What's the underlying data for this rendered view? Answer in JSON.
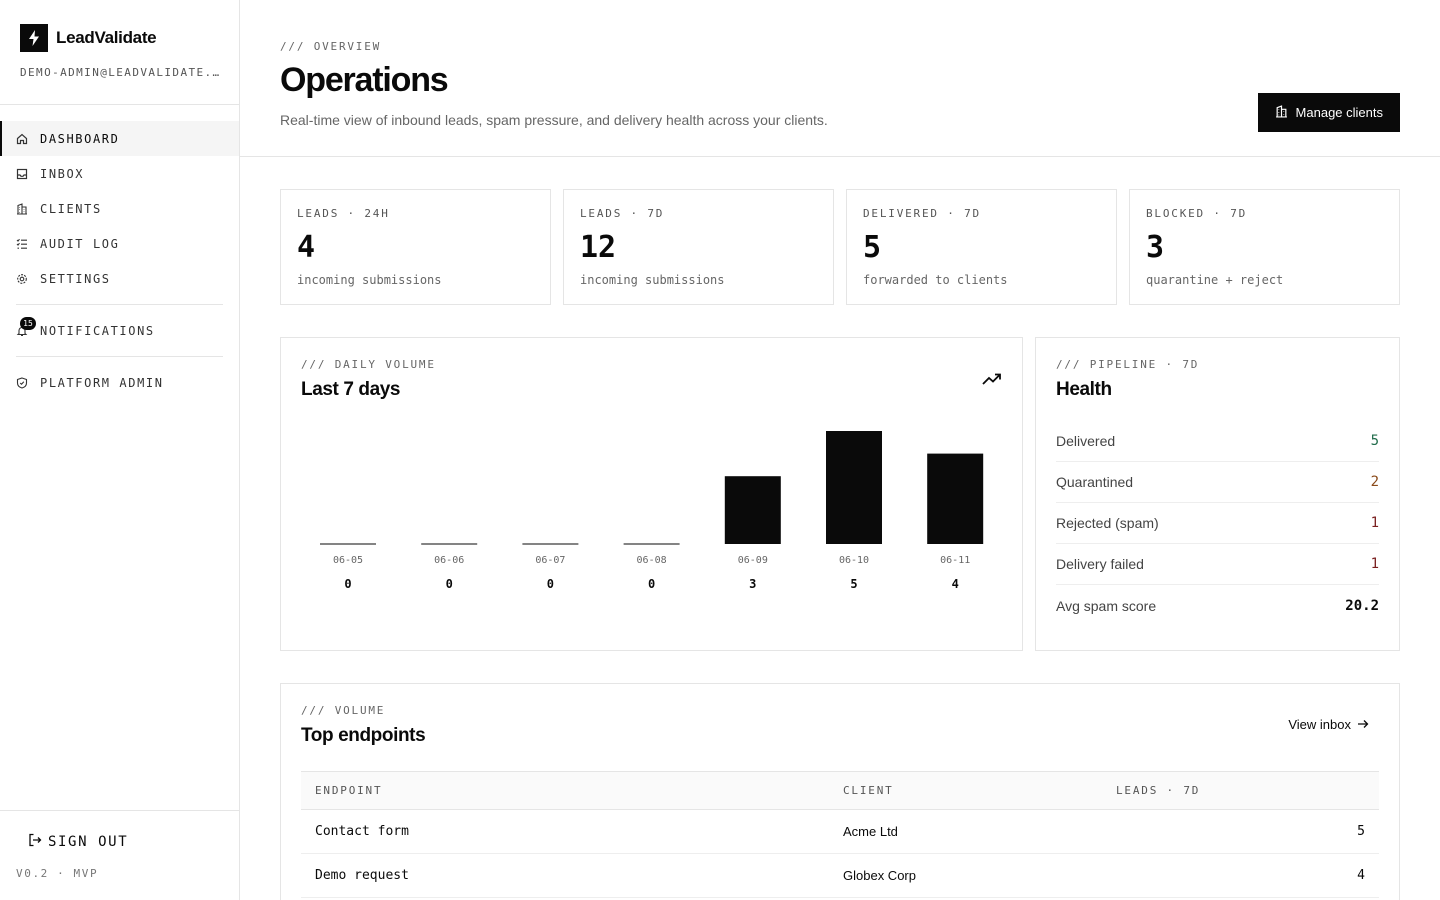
{
  "sidebar": {
    "brand_name": "LeadValidate",
    "user_email": "demo-admin@leadvalidate.io",
    "items": [
      {
        "label": "DASHBOARD",
        "icon": "home-icon"
      },
      {
        "label": "INBOX",
        "icon": "inbox-icon"
      },
      {
        "label": "CLIENTS",
        "icon": "building-icon"
      },
      {
        "label": "AUDIT LOG",
        "icon": "list-check-icon"
      },
      {
        "label": "SETTINGS",
        "icon": "gear-icon"
      }
    ],
    "notifications": {
      "label": "NOTIFICATIONS",
      "count": "15"
    },
    "platform_admin": "PLATFORM ADMIN",
    "sign_out": "SIGN OUT",
    "version": "V0.2 · MVP"
  },
  "header": {
    "eyebrow": "/// OVERVIEW",
    "title": "Operations",
    "subtitle": "Real-time view of inbound leads, spam pressure, and delivery health across your clients.",
    "manage_button": "Manage clients"
  },
  "stats": [
    {
      "label": "LEADS · 24H",
      "value": "4",
      "hint": "incoming submissions"
    },
    {
      "label": "LEADS · 7D",
      "value": "12",
      "hint": "incoming submissions"
    },
    {
      "label": "DELIVERED · 7D",
      "value": "5",
      "hint": "forwarded to clients"
    },
    {
      "label": "BLOCKED · 7D",
      "value": "3",
      "hint": "quarantine + reject"
    }
  ],
  "volume": {
    "eyebrow": "/// DAILY VOLUME",
    "title": "Last 7 days"
  },
  "chart_data": {
    "type": "bar",
    "categories": [
      "06-05",
      "06-06",
      "06-07",
      "06-08",
      "06-09",
      "06-10",
      "06-11"
    ],
    "values": [
      0,
      0,
      0,
      0,
      3,
      5,
      4
    ],
    "ylim": [
      0,
      5
    ]
  },
  "health": {
    "eyebrow": "/// PIPELINE · 7D",
    "title": "Health",
    "rows": [
      {
        "label": "Delivered",
        "value": "5",
        "color": "#1f6b4a"
      },
      {
        "label": "Quarantined",
        "value": "2",
        "color": "#8a4a1a"
      },
      {
        "label": "Rejected (spam)",
        "value": "1",
        "color": "#7a1f1f"
      },
      {
        "label": "Delivery failed",
        "value": "1",
        "color": "#7a1f1f"
      },
      {
        "label": "Avg spam score",
        "value": "20.2",
        "color": "#0a0a0a"
      }
    ]
  },
  "endpoints": {
    "eyebrow": "/// VOLUME",
    "title": "Top endpoints",
    "view_inbox": "View inbox",
    "columns": [
      "ENDPOINT",
      "CLIENT",
      "LEADS · 7D"
    ],
    "rows": [
      {
        "endpoint": "Contact form",
        "client": "Acme Ltd",
        "leads": "5"
      },
      {
        "endpoint": "Demo request",
        "client": "Globex Corp",
        "leads": "4"
      }
    ]
  },
  "colors": {
    "accent": "#0a0a0a",
    "border": "#e5e5e5"
  }
}
